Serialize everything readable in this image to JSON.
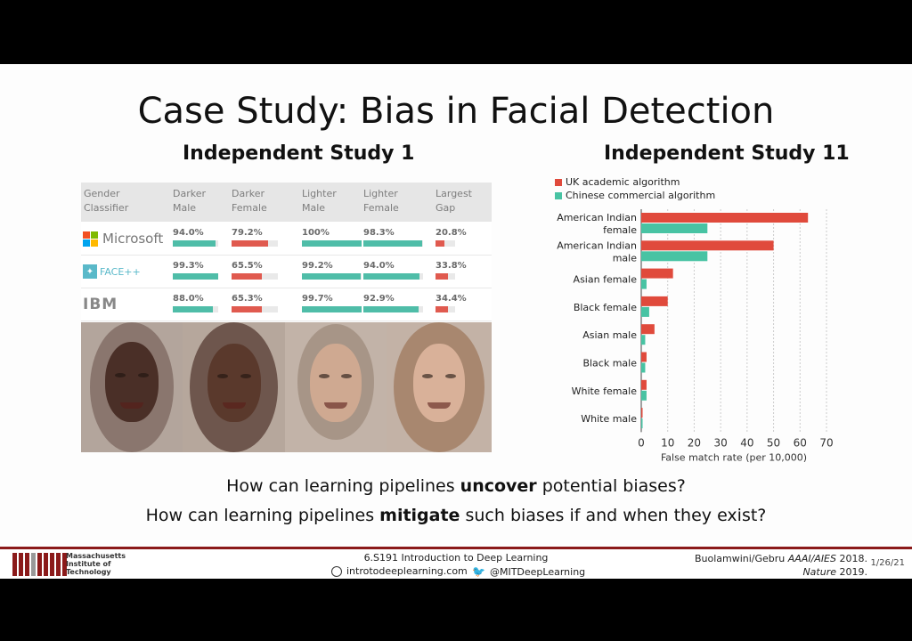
{
  "slide": {
    "title": "Case Study: Bias in Facial Detection",
    "study1_title": "Independent Study 1",
    "study2_title": "Independent Study 11",
    "question1": {
      "pre": "How can learning pipelines ",
      "bold": "uncover",
      "post": " potential biases?"
    },
    "question2": {
      "pre": "How can learning pipelines ",
      "bold": "mitigate",
      "post": " such biases if and when they exist?"
    }
  },
  "table": {
    "headers": [
      [
        "Gender",
        "Classifier"
      ],
      [
        "Darker",
        "Male"
      ],
      [
        "Darker",
        "Female"
      ],
      [
        "Lighter",
        "Male"
      ],
      [
        "Lighter",
        "Female"
      ],
      [
        "Largest",
        "Gap"
      ]
    ],
    "rows": [
      {
        "classifier": "Microsoft",
        "logo_icon": "microsoft-logo-icon",
        "values": [
          "94.0%",
          "79.2%",
          "100%",
          "98.3%",
          "20.8%"
        ],
        "fractions": [
          0.94,
          0.792,
          1.0,
          0.983,
          0.208
        ]
      },
      {
        "classifier": "FACE++",
        "logo_icon": "faceplusplus-logo-icon",
        "values": [
          "99.3%",
          "65.5%",
          "99.2%",
          "94.0%",
          "33.8%"
        ],
        "fractions": [
          0.993,
          0.655,
          0.992,
          0.94,
          0.338
        ]
      },
      {
        "classifier": "IBM",
        "logo_icon": "ibm-logo-icon",
        "values": [
          "88.0%",
          "65.3%",
          "99.7%",
          "92.9%",
          "34.4%"
        ],
        "fractions": [
          0.88,
          0.653,
          0.997,
          0.929,
          0.344
        ]
      }
    ],
    "colors": {
      "good": "#4fbda8",
      "bad": "#e05a4f",
      "track": "#e9e9e9"
    }
  },
  "chart_data": {
    "type": "bar",
    "orientation": "horizontal",
    "categories": [
      "American Indian female",
      "American Indian male",
      "Asian female",
      "Black female",
      "Asian male",
      "Black male",
      "White female",
      "White male"
    ],
    "category_lines": [
      [
        "American Indian",
        "female"
      ],
      [
        "American Indian",
        "male"
      ],
      [
        "Asian female"
      ],
      [
        "Black female"
      ],
      [
        "Asian male"
      ],
      [
        "Black male"
      ],
      [
        "White female"
      ],
      [
        "White male"
      ]
    ],
    "series": [
      {
        "name": "UK academic algorithm",
        "color": "#e04a3c",
        "values": [
          63,
          50,
          12,
          10,
          5,
          2,
          2,
          0.5
        ]
      },
      {
        "name": "Chinese commercial algorithm",
        "color": "#48c3a3",
        "values": [
          25,
          25,
          2,
          3,
          1.5,
          1.5,
          2,
          0.5
        ]
      }
    ],
    "xlabel": "False match rate (per 10,000)",
    "xticks": [
      0,
      10,
      20,
      30,
      40,
      50,
      60,
      70
    ],
    "xlim": [
      0,
      70
    ],
    "grid": "vertical",
    "legend": "top-left"
  },
  "footer": {
    "institute": [
      "Massachusetts",
      "Institute of",
      "Technology"
    ],
    "course": "6.S191 Introduction to Deep Learning",
    "website": "introtodeeplearning.com",
    "twitter": "@MITDeepLearning",
    "citation_line1_pre": "Buolamwini/Gebru ",
    "citation_line1_em": "AAAI/AIES",
    "citation_line1_post": " 2018.",
    "citation_line2_em": "Nature",
    "citation_line2_post": " 2019.",
    "date": "1/26/21",
    "colors": {
      "mit_red": "#8b1a1a"
    }
  }
}
